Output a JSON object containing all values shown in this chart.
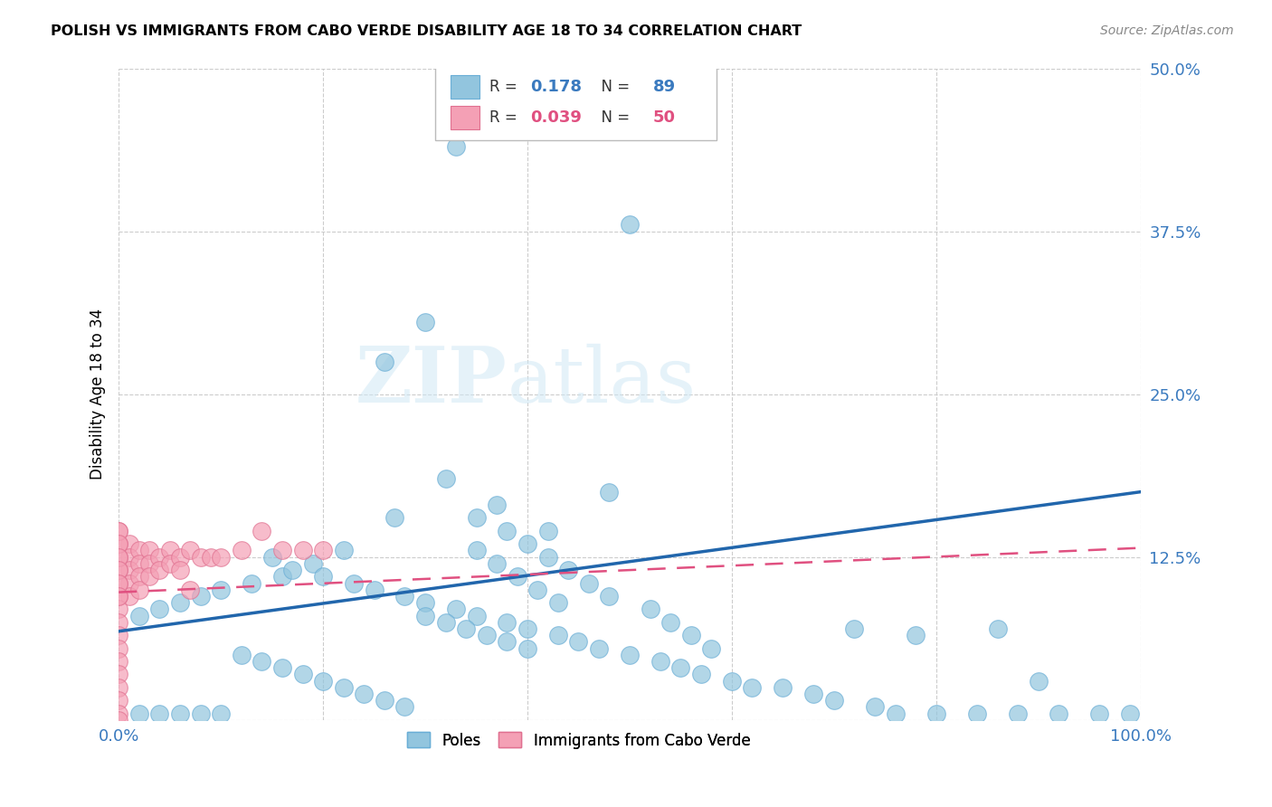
{
  "title": "POLISH VS IMMIGRANTS FROM CABO VERDE DISABILITY AGE 18 TO 34 CORRELATION CHART",
  "source": "Source: ZipAtlas.com",
  "ylabel": "Disability Age 18 to 34",
  "xlim": [
    0,
    1.0
  ],
  "ylim": [
    0,
    0.5
  ],
  "xticks": [
    0.0,
    0.2,
    0.4,
    0.6,
    0.8,
    1.0
  ],
  "xticklabels": [
    "0.0%",
    "",
    "",
    "",
    "",
    "100.0%"
  ],
  "yticks": [
    0.0,
    0.125,
    0.25,
    0.375,
    0.5
  ],
  "yticklabels": [
    "",
    "12.5%",
    "25.0%",
    "37.5%",
    "50.0%"
  ],
  "watermark_zip": "ZIP",
  "watermark_atlas": "atlas",
  "poles_color": "#92c5de",
  "cabo_color": "#f4a0b5",
  "poles_edge": "#6aaed6",
  "cabo_edge": "#e07090",
  "trend_poles_color": "#2166ac",
  "trend_cabo_color": "#e05080",
  "poles_R": 0.178,
  "poles_N": 89,
  "cabo_R": 0.039,
  "cabo_N": 50,
  "poles_trend_x0": 0.0,
  "poles_trend_y0": 0.068,
  "poles_trend_x1": 1.0,
  "poles_trend_y1": 0.175,
  "cabo_trend_x0": 0.0,
  "cabo_trend_y0": 0.098,
  "cabo_trend_x1": 1.0,
  "cabo_trend_y1": 0.132,
  "poles_scatter_x": [
    0.33,
    0.5,
    0.3,
    0.26,
    0.32,
    0.37,
    0.27,
    0.42,
    0.48,
    0.35,
    0.22,
    0.19,
    0.16,
    0.13,
    0.1,
    0.08,
    0.06,
    0.04,
    0.02,
    0.15,
    0.17,
    0.2,
    0.23,
    0.25,
    0.28,
    0.3,
    0.33,
    0.35,
    0.38,
    0.4,
    0.43,
    0.45,
    0.47,
    0.5,
    0.53,
    0.55,
    0.57,
    0.6,
    0.62,
    0.38,
    0.4,
    0.42,
    0.44,
    0.46,
    0.48,
    0.52,
    0.54,
    0.56,
    0.58,
    0.35,
    0.37,
    0.39,
    0.41,
    0.43,
    0.3,
    0.32,
    0.34,
    0.36,
    0.38,
    0.4,
    0.12,
    0.14,
    0.16,
    0.18,
    0.2,
    0.22,
    0.24,
    0.26,
    0.28,
    0.1,
    0.08,
    0.06,
    0.04,
    0.02,
    0.72,
    0.78,
    0.86,
    0.9,
    0.65,
    0.68,
    0.7,
    0.74,
    0.76,
    0.8,
    0.84,
    0.88,
    0.92,
    0.96,
    0.99
  ],
  "poles_scatter_y": [
    0.44,
    0.38,
    0.305,
    0.275,
    0.185,
    0.165,
    0.155,
    0.145,
    0.175,
    0.155,
    0.13,
    0.12,
    0.11,
    0.105,
    0.1,
    0.095,
    0.09,
    0.085,
    0.08,
    0.125,
    0.115,
    0.11,
    0.105,
    0.1,
    0.095,
    0.09,
    0.085,
    0.08,
    0.075,
    0.07,
    0.065,
    0.06,
    0.055,
    0.05,
    0.045,
    0.04,
    0.035,
    0.03,
    0.025,
    0.145,
    0.135,
    0.125,
    0.115,
    0.105,
    0.095,
    0.085,
    0.075,
    0.065,
    0.055,
    0.13,
    0.12,
    0.11,
    0.1,
    0.09,
    0.08,
    0.075,
    0.07,
    0.065,
    0.06,
    0.055,
    0.05,
    0.045,
    0.04,
    0.035,
    0.03,
    0.025,
    0.02,
    0.015,
    0.01,
    0.005,
    0.005,
    0.005,
    0.005,
    0.005,
    0.07,
    0.065,
    0.07,
    0.03,
    0.025,
    0.02,
    0.015,
    0.01,
    0.005,
    0.005,
    0.005,
    0.005,
    0.005,
    0.005,
    0.005
  ],
  "cabo_scatter_x": [
    0.01,
    0.01,
    0.01,
    0.01,
    0.01,
    0.02,
    0.02,
    0.02,
    0.02,
    0.03,
    0.03,
    0.03,
    0.04,
    0.04,
    0.05,
    0.05,
    0.06,
    0.06,
    0.07,
    0.07,
    0.08,
    0.09,
    0.1,
    0.12,
    0.14,
    0.16,
    0.18,
    0.2,
    0.0,
    0.0,
    0.0,
    0.0,
    0.0,
    0.0,
    0.0,
    0.0,
    0.0,
    0.0,
    0.0,
    0.0,
    0.0,
    0.0,
    0.0,
    0.0,
    0.0,
    0.0,
    0.0,
    0.0,
    0.0,
    0.0
  ],
  "cabo_scatter_y": [
    0.135,
    0.125,
    0.115,
    0.105,
    0.095,
    0.13,
    0.12,
    0.11,
    0.1,
    0.13,
    0.12,
    0.11,
    0.125,
    0.115,
    0.13,
    0.12,
    0.125,
    0.115,
    0.13,
    0.1,
    0.125,
    0.125,
    0.125,
    0.13,
    0.145,
    0.13,
    0.13,
    0.13,
    0.145,
    0.135,
    0.125,
    0.115,
    0.105,
    0.095,
    0.085,
    0.075,
    0.065,
    0.055,
    0.045,
    0.035,
    0.025,
    0.015,
    0.005,
    0.145,
    0.135,
    0.125,
    0.115,
    0.105,
    0.095,
    0.0
  ]
}
